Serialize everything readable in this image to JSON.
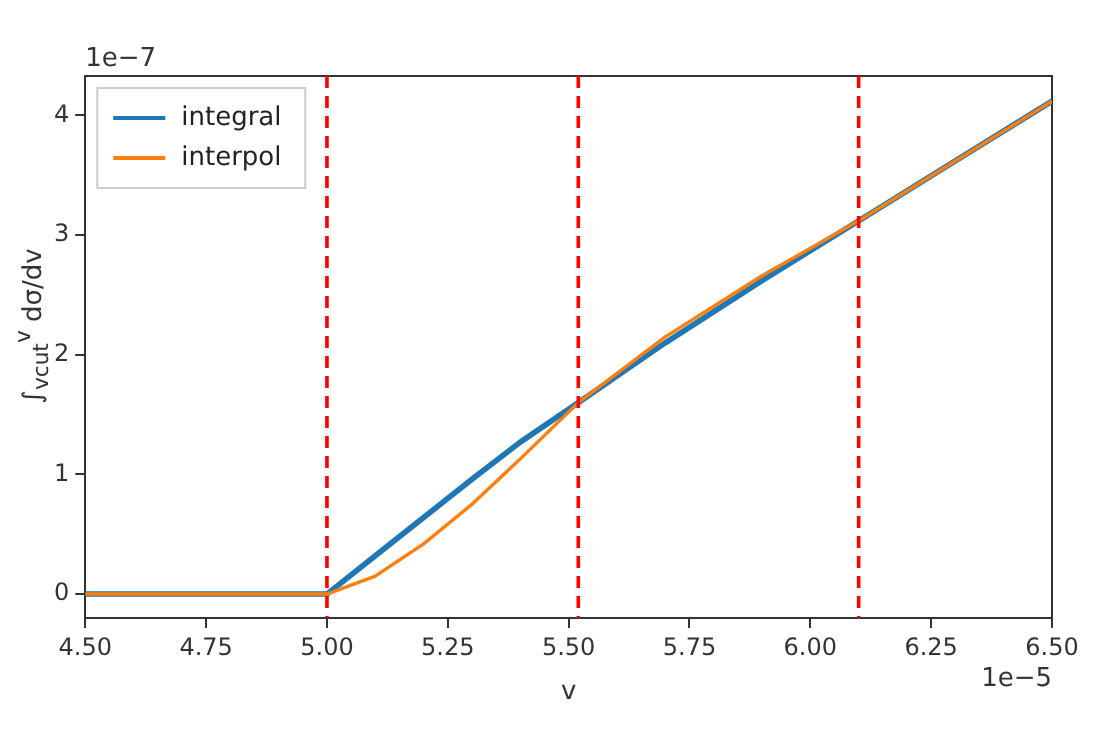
{
  "chart_data": {
    "type": "line",
    "xlabel": "v",
    "ylabel": "∫$_{vcut}$$^{v}$ dσ/dv",
    "annotations": [
      "1e−7",
      "1e−5"
    ],
    "xlim": [
      4.5,
      6.5
    ],
    "xticks": [
      {
        "value": 4.5,
        "label": "4.50"
      },
      {
        "value": 4.75,
        "label": "4.75"
      },
      {
        "value": 5,
        "label": "5.00"
      },
      {
        "value": 5.25,
        "label": "5.25"
      },
      {
        "value": 5.5,
        "label": "5.50"
      },
      {
        "value": 5.75,
        "label": "5.75"
      },
      {
        "value": 6,
        "label": "6.00"
      },
      {
        "value": 6.25,
        "label": "6.25"
      },
      {
        "value": 6.5,
        "label": "6.50"
      }
    ],
    "ylim": [
      -0.2,
      4.33
    ],
    "yticks": [
      0,
      1,
      2,
      3,
      4
    ],
    "grid": false,
    "legend": "top left",
    "marker": "none",
    "line_style": "solid",
    "series": [
      {
        "name": "integral",
        "color": "#1f77b4",
        "x": [
          4.5,
          5.0,
          5.1,
          5.2,
          5.3,
          5.4,
          5.52,
          5.7,
          5.9,
          6.1,
          6.3,
          6.5
        ],
        "values": [
          0,
          0,
          0.32,
          0.64,
          0.96,
          1.27,
          1.6,
          2.1,
          2.62,
          3.12,
          3.62,
          4.12
        ]
      },
      {
        "name": "interpol",
        "color": "#ff7f0e",
        "x": [
          4.5,
          5.0,
          5.1,
          5.2,
          5.3,
          5.4,
          5.52,
          5.7,
          5.9,
          6.1,
          6.3,
          6.5
        ],
        "values": [
          0,
          0,
          0.15,
          0.42,
          0.75,
          1.13,
          1.6,
          2.15,
          2.66,
          3.12,
          3.62,
          4.12
        ]
      }
    ],
    "ref_lines": [
      {
        "axis": "x",
        "value": 5.0,
        "color": "#ff0000",
        "line_style": "dashed"
      },
      {
        "axis": "x",
        "value": 5.52,
        "color": "#ff0000",
        "line_style": "dashed"
      },
      {
        "axis": "x",
        "value": 6.1,
        "color": "#ff0000",
        "line_style": "dashed"
      }
    ]
  }
}
